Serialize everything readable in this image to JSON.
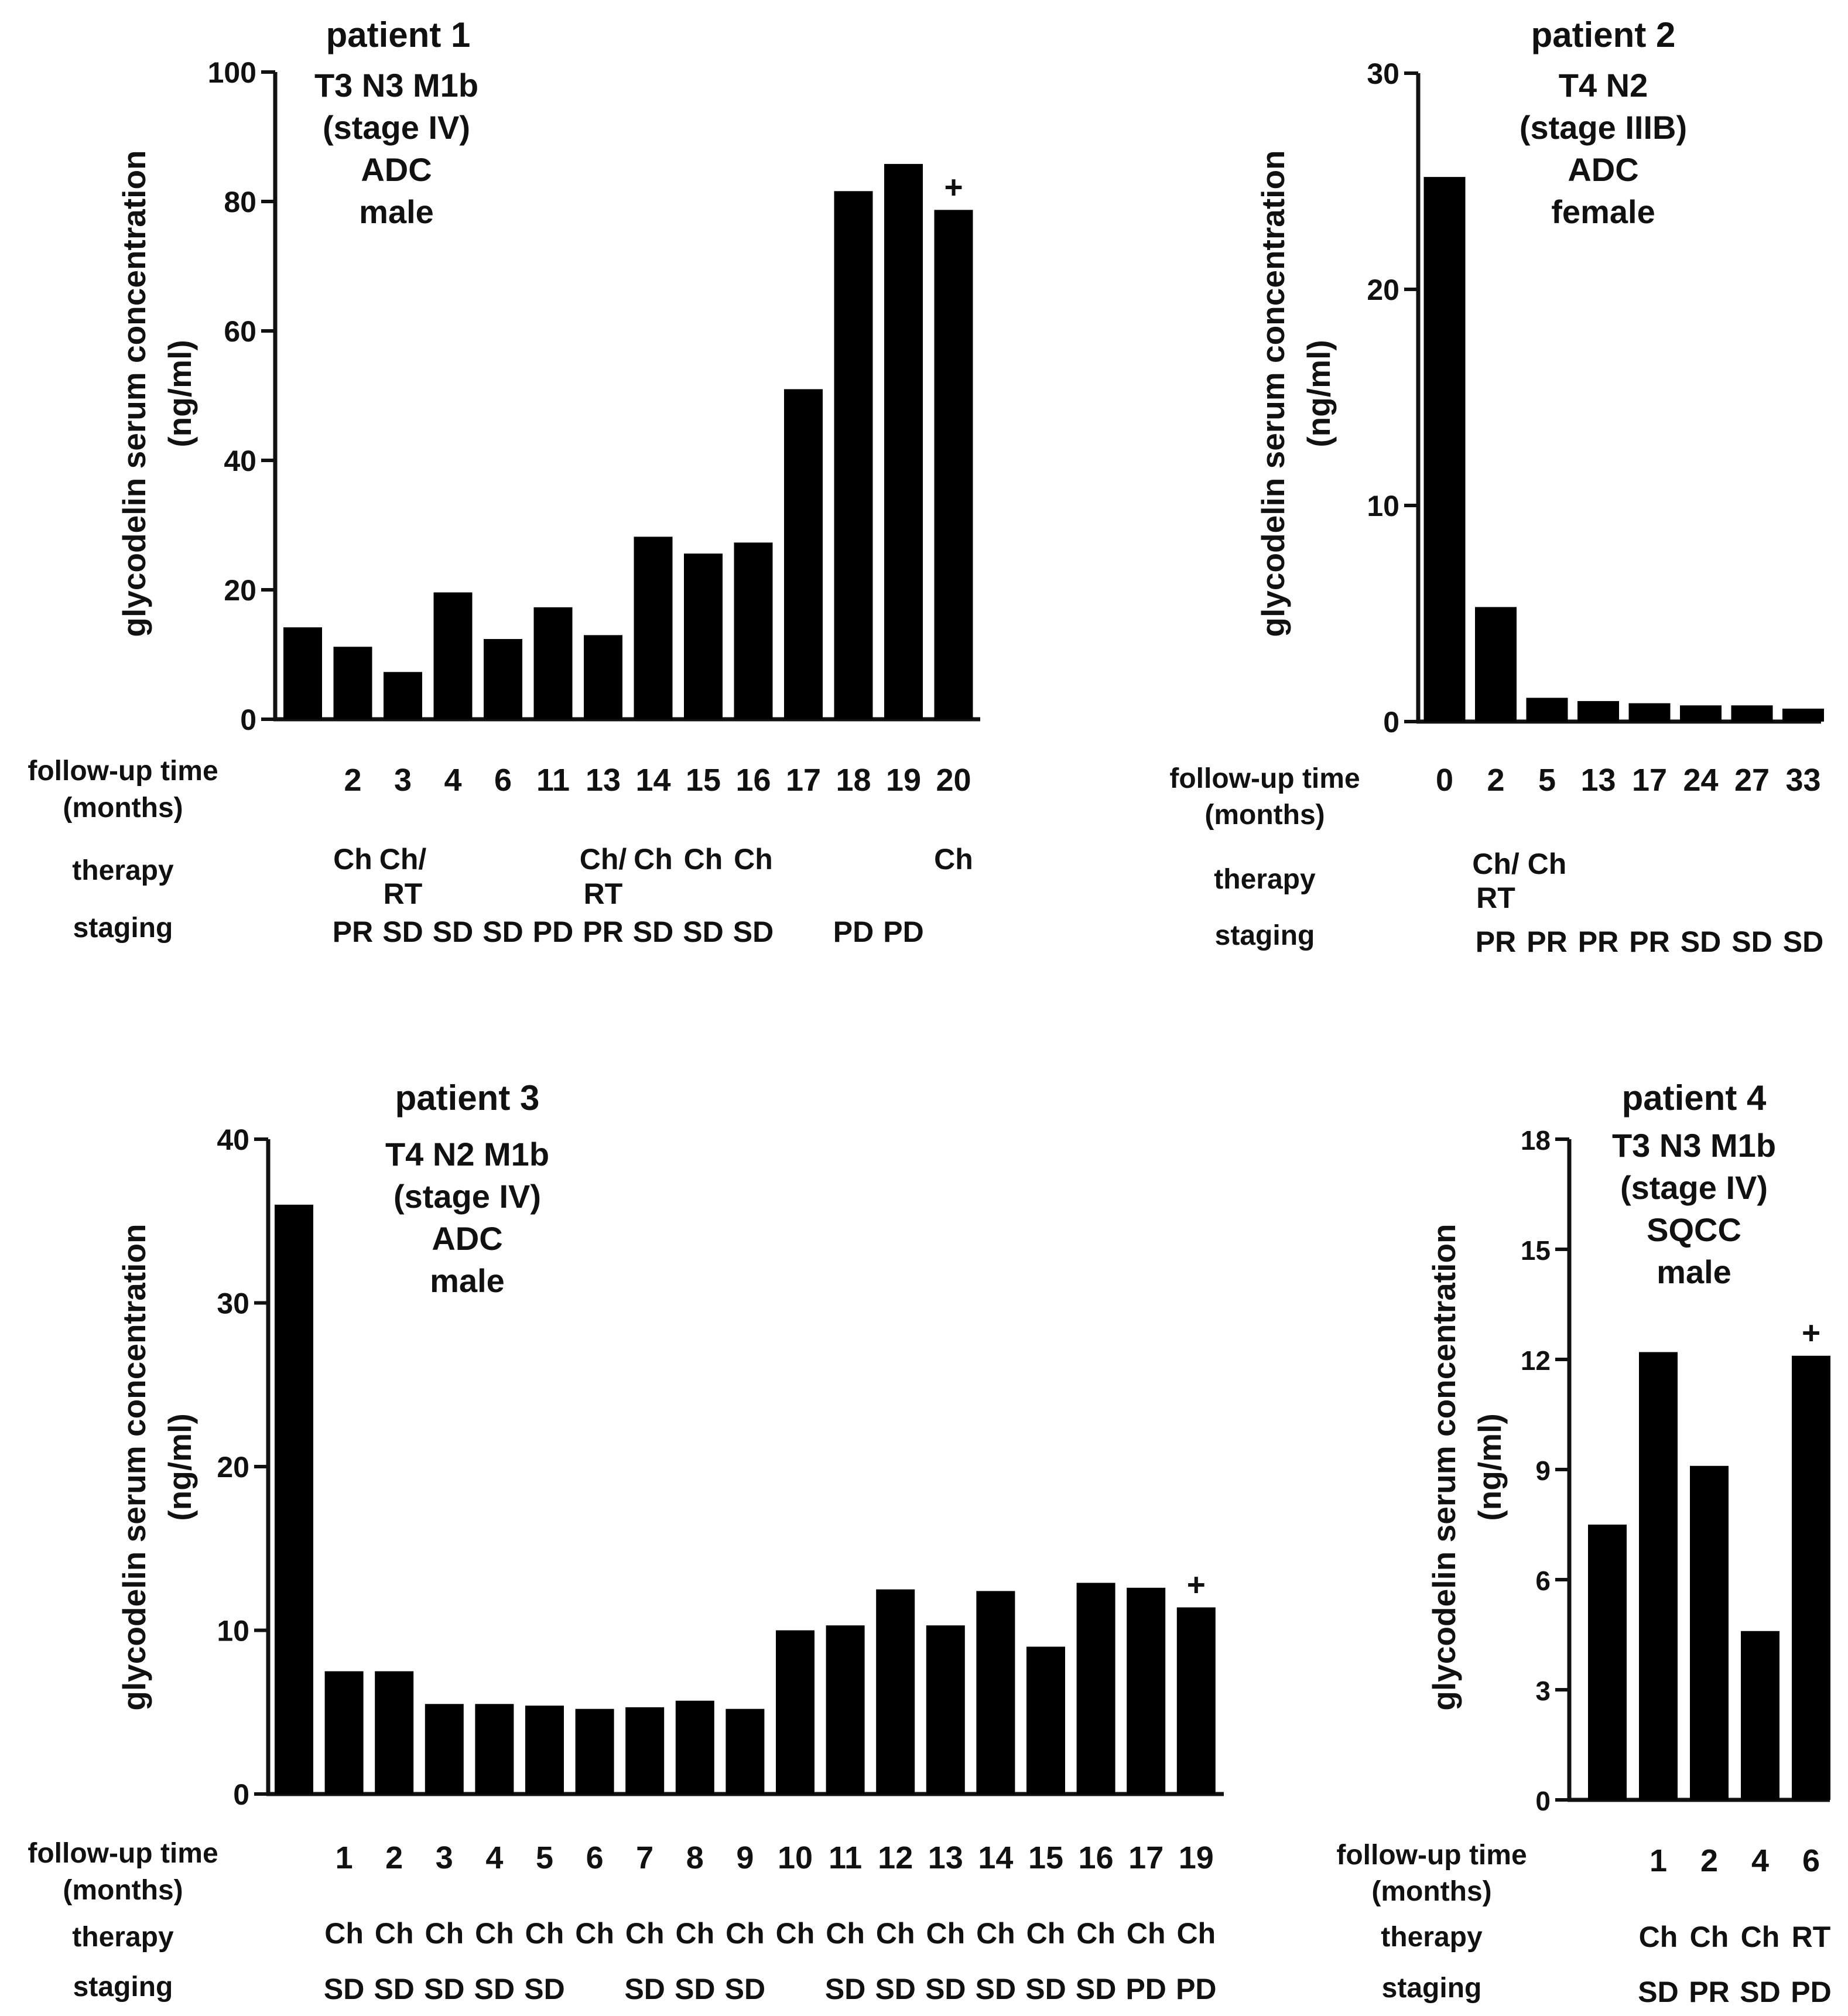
{
  "chart_data": [
    {
      "type": "bar",
      "title": "patient 1",
      "annotation": [
        "T3 N3 M1b",
        "(stage IV)",
        "ADC",
        "male"
      ],
      "ylabel": [
        "glycodelin serum concentration",
        "(ng/ml)"
      ],
      "ylim": [
        0,
        100
      ],
      "yticks": [
        "0",
        "20",
        "40",
        "60",
        "80",
        "100"
      ],
      "row_labels": {
        "time": [
          "follow-up time",
          "(months)"
        ],
        "therapy": "therapy",
        "staging": "staging"
      },
      "categories": [
        "",
        "2",
        "3",
        "4",
        "6",
        "11",
        "13",
        "14",
        "15",
        "16",
        "17",
        "18",
        "19",
        "20"
      ],
      "values": [
        14.2,
        11.2,
        7.3,
        19.6,
        12.4,
        17.3,
        13.0,
        28.2,
        25.6,
        27.3,
        51.0,
        81.6,
        85.8,
        78.7
      ],
      "therapy": [
        [
          "",
          ""
        ],
        [
          "Ch",
          ""
        ],
        [
          "Ch/",
          "RT"
        ],
        [
          "",
          ""
        ],
        [
          "",
          ""
        ],
        [
          "",
          ""
        ],
        [
          "Ch/",
          "RT"
        ],
        [
          "Ch",
          ""
        ],
        [
          "Ch",
          ""
        ],
        [
          "Ch",
          ""
        ],
        [
          "",
          ""
        ],
        [
          "",
          ""
        ],
        [
          "",
          ""
        ],
        [
          "Ch",
          ""
        ]
      ],
      "staging": [
        "",
        "PR",
        "SD",
        "SD",
        "SD",
        "PD",
        "PR",
        "SD",
        "SD",
        "SD",
        "",
        "PD",
        "PD",
        ""
      ],
      "marks": [
        "",
        "",
        "",
        "",
        "",
        "",
        "",
        "",
        "",
        "",
        "",
        "",
        "",
        "+"
      ]
    },
    {
      "type": "bar",
      "title": "patient 2",
      "annotation": [
        "T4 N2",
        "(stage IIIB)",
        "ADC",
        "female"
      ],
      "ylabel": [
        "glycodelin serum concentration",
        "(ng/ml)"
      ],
      "ylim": [
        0,
        30
      ],
      "yticks": [
        "0",
        "10",
        "20",
        "30"
      ],
      "row_labels": {
        "time": [
          "follow-up time",
          "(months)"
        ],
        "therapy": "therapy",
        "staging": "staging"
      },
      "categories": [
        "0",
        "2",
        "5",
        "13",
        "17",
        "24",
        "27",
        "33"
      ],
      "values": [
        25.2,
        5.3,
        1.1,
        0.95,
        0.85,
        0.75,
        0.75,
        0.6
      ],
      "therapy": [
        [
          "",
          ""
        ],
        [
          "Ch/",
          "RT"
        ],
        [
          "Ch",
          ""
        ],
        [
          "",
          ""
        ],
        [
          "",
          ""
        ],
        [
          "",
          ""
        ],
        [
          "",
          ""
        ],
        [
          "",
          ""
        ]
      ],
      "staging": [
        "",
        "PR",
        "PR",
        "PR",
        "PR",
        "SD",
        "SD",
        "SD"
      ],
      "marks": [
        "",
        "",
        "",
        "",
        "",
        "",
        "",
        ""
      ]
    },
    {
      "type": "bar",
      "title": "patient 3",
      "annotation": [
        "T4 N2 M1b",
        "(stage IV)",
        "ADC",
        "male"
      ],
      "ylabel": [
        "glycodelin serum concentration",
        "(ng/ml)"
      ],
      "ylim": [
        0,
        40
      ],
      "yticks": [
        "0",
        "10",
        "20",
        "30",
        "40"
      ],
      "row_labels": {
        "time": [
          "follow-up time",
          "(months)"
        ],
        "therapy": "therapy",
        "staging": "staging"
      },
      "categories": [
        "",
        "1",
        "2",
        "3",
        "4",
        "5",
        "6",
        "7",
        "8",
        "9",
        "10",
        "11",
        "12",
        "13",
        "14",
        "15",
        "16",
        "17",
        "19"
      ],
      "values": [
        36.0,
        7.5,
        7.5,
        5.5,
        5.5,
        5.4,
        5.2,
        5.3,
        5.7,
        5.2,
        10.0,
        10.3,
        12.5,
        10.3,
        12.4,
        9.0,
        12.9,
        12.6,
        11.4
      ],
      "therapy": [
        [
          "",
          ""
        ],
        [
          "Ch",
          ""
        ],
        [
          "Ch",
          ""
        ],
        [
          "Ch",
          ""
        ],
        [
          "Ch",
          ""
        ],
        [
          "Ch",
          ""
        ],
        [
          "Ch",
          ""
        ],
        [
          "Ch",
          ""
        ],
        [
          "Ch",
          ""
        ],
        [
          "Ch",
          ""
        ],
        [
          "Ch",
          ""
        ],
        [
          "Ch",
          ""
        ],
        [
          "Ch",
          ""
        ],
        [
          "Ch",
          ""
        ],
        [
          "Ch",
          ""
        ],
        [
          "Ch",
          ""
        ],
        [
          "Ch",
          ""
        ],
        [
          "Ch",
          ""
        ],
        [
          "Ch",
          ""
        ]
      ],
      "staging": [
        "",
        "SD",
        "SD",
        "SD",
        "SD",
        "SD",
        "",
        "SD",
        "SD",
        "SD",
        "",
        "SD",
        "SD",
        "SD",
        "SD",
        "SD",
        "SD",
        "PD",
        "PD"
      ],
      "marks": [
        "",
        "",
        "",
        "",
        "",
        "",
        "",
        "",
        "",
        "",
        "",
        "",
        "",
        "",
        "",
        "",
        "",
        "",
        "+"
      ]
    },
    {
      "type": "bar",
      "title": "patient 4",
      "annotation": [
        "T3 N3 M1b",
        "(stage IV)",
        "SQCC",
        "male"
      ],
      "ylabel": [
        "glycodelin serum concentration",
        "(ng/ml)"
      ],
      "ylim": [
        0,
        18
      ],
      "yticks": [
        "0",
        "3",
        "6",
        "9",
        "12",
        "15",
        "18"
      ],
      "row_labels": {
        "time": [
          "follow-up time",
          "(months)"
        ],
        "therapy": "therapy",
        "staging": "staging"
      },
      "categories": [
        "",
        "1",
        "2",
        "4",
        "6"
      ],
      "values": [
        7.5,
        12.2,
        9.1,
        4.6,
        12.1
      ],
      "therapy": [
        [
          "",
          ""
        ],
        [
          "Ch",
          ""
        ],
        [
          "Ch",
          ""
        ],
        [
          "Ch",
          ""
        ],
        [
          "RT",
          ""
        ]
      ],
      "staging": [
        "",
        "SD",
        "PR",
        "SD",
        "PD"
      ],
      "marks": [
        "",
        "",
        "",
        "",
        "+"
      ]
    }
  ]
}
